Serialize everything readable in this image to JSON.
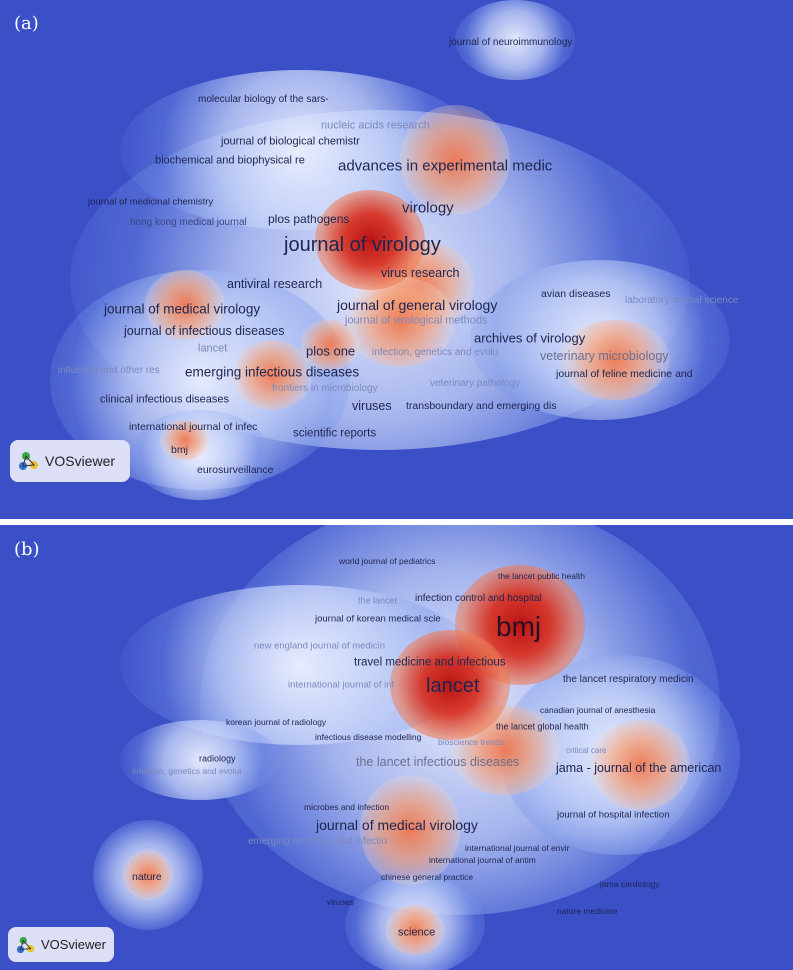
{
  "colors": {
    "background": "#3b4fc7",
    "low": "#dfe6ff",
    "mid": "#f08050",
    "high": "#b91414"
  },
  "panel_a": {
    "tag": "(a)",
    "logo": "VOSviewer",
    "labels": [
      "journal of neuroimmunology",
      "molecular biology of the sars-",
      "nucleic acids research",
      "journal of biological chemistr",
      "biochemical and biophysical re",
      "advances in experimental medic",
      "journal of medicinal chemistry",
      "hong kong medical journal",
      "plos pathogens",
      "virology",
      "journal of virology",
      "virus research",
      "antiviral research",
      "avian diseases",
      "laboratory animal science",
      "journal of medical virology",
      "journal of general virology",
      "journal of virological methods",
      "journal of infectious diseases",
      "archives of virology",
      "lancet",
      "plos one",
      "infection, genetics and evolu",
      "veterinary microbiology",
      "influenza and other res",
      "emerging infectious diseases",
      "journal of feline medicine and",
      "veterinary pathology",
      "frontiers in microbiology",
      "clinical infectious diseases",
      "viruses",
      "transboundary and emerging dis",
      "international journal of infec",
      "scientific reports",
      "bmj",
      "eurosurveillance"
    ]
  },
  "panel_b": {
    "tag": "(b)",
    "logo": "VOSviewer",
    "labels": [
      "world journal of pediatrics",
      "the lancet public health",
      "infection control and hospital",
      "the lancet",
      "journal of korean medical scie",
      "bmj",
      "new england journal of medicin",
      "travel medicine and infectious",
      "international journal of inf",
      "lancet",
      "the lancet respiratory medicin",
      "canadian journal of anesthesia",
      "korean journal of radiology",
      "the lancet global health",
      "infectious disease modelling",
      "bioscience trends",
      "radiology",
      "infection, genetics and evolut",
      "the lancet infectious diseases",
      "critical care",
      "jama - journal of the american",
      "microbes and infection",
      "journal of hospital infection",
      "journal of medical virology",
      "emerging microbes and infectio",
      "international journal of envir",
      "international journal of antim",
      "nature",
      "chinese general practice",
      "jama cardiology",
      "viruses",
      "nature medicine",
      "science"
    ]
  },
  "icons": {
    "logo": "vosviewer-logo-icon"
  }
}
